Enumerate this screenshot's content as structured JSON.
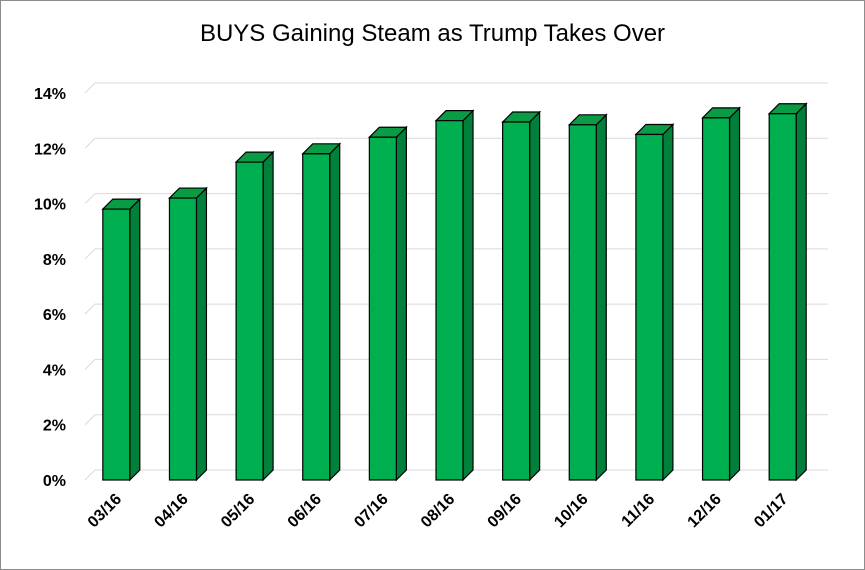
{
  "chart_data": {
    "type": "bar",
    "title": "BUYS Gaining Steam as Trump Takes Over",
    "xlabel": "",
    "ylabel": "",
    "categories": [
      "03/16",
      "04/16",
      "05/16",
      "06/16",
      "07/16",
      "08/16",
      "09/16",
      "10/16",
      "11/16",
      "12/16",
      "01/17"
    ],
    "values": [
      9.8,
      10.2,
      11.5,
      11.8,
      12.4,
      13.0,
      12.95,
      12.85,
      12.5,
      13.1,
      13.25
    ],
    "ylim": [
      0,
      14
    ],
    "yticks": [
      "0%",
      "2%",
      "4%",
      "6%",
      "8%",
      "10%",
      "12%",
      "14%"
    ],
    "grid": true,
    "legend": "none",
    "colors": {
      "bar_front": "#00B050",
      "bar_side": "#00803a",
      "bar_top": "#0a9c45",
      "outline": "#000000",
      "grid": "#d9d9d9"
    }
  }
}
